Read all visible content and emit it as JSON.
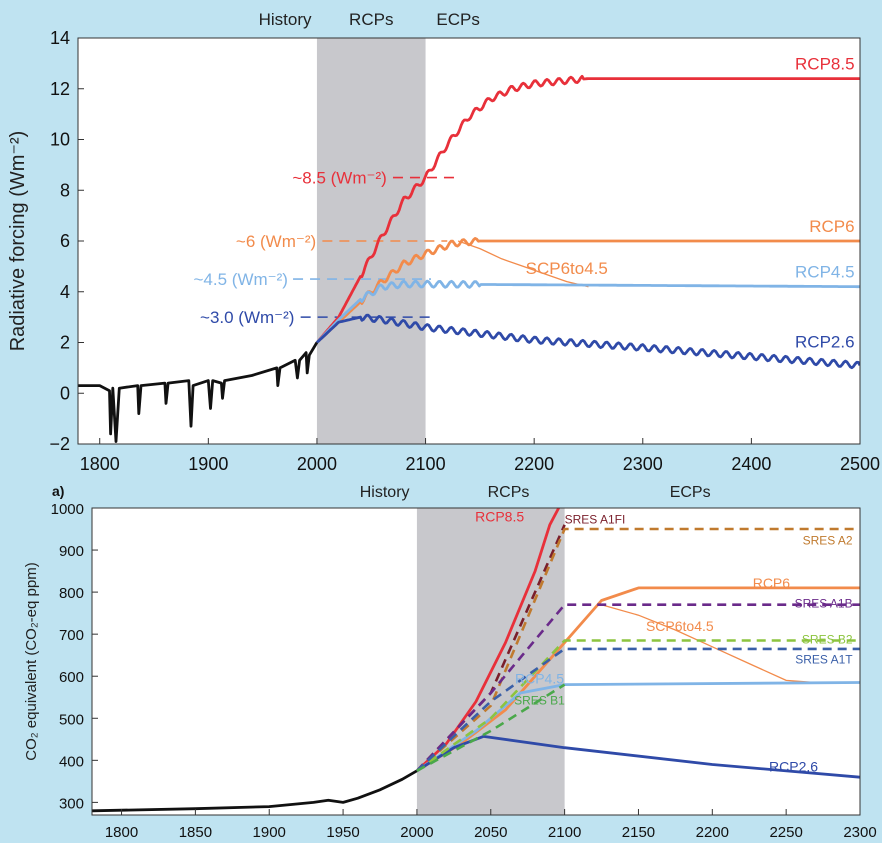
{
  "colors": {
    "rcp85": "#e8303a",
    "rcp6": "#f28b4b",
    "rcp45": "#80b4e6",
    "rcp26": "#2f4aa8",
    "history": "#111111",
    "shade": "#c8c8cc",
    "sres_a1fi": "#7a1f2b",
    "sres_a2": "#c07a2e",
    "sres_a1b": "#6a2a8a",
    "sres_b2": "#8cc43f",
    "sres_a1t": "#3a5fa8",
    "sres_b1": "#4aa84a"
  },
  "chart_data": [
    {
      "type": "line",
      "ylabel": "Radiative forcing (Wm⁻²)",
      "xlim": [
        1780,
        2500
      ],
      "ylim": [
        -2,
        14
      ],
      "x_ticks": [
        1800,
        1900,
        2000,
        2100,
        2200,
        2300,
        2400,
        2500
      ],
      "y_ticks": [
        -2,
        0,
        2,
        4,
        6,
        8,
        10,
        12,
        14
      ],
      "grid": false,
      "shaded_range": [
        2000,
        2100
      ],
      "period_labels": [
        "History",
        "RCPs",
        "ECPs"
      ],
      "level_labels": [
        {
          "text": "~8.5 (Wm⁻²)",
          "y": 8.5,
          "color": "rcp85"
        },
        {
          "text": "~6 (Wm⁻²)",
          "y": 6,
          "color": "rcp6"
        },
        {
          "text": "~4.5 (Wm⁻²)",
          "y": 4.5,
          "color": "rcp45"
        },
        {
          "text": "~3.0 (Wm⁻²)",
          "y": 3.0,
          "color": "rcp26"
        }
      ],
      "series": [
        {
          "name": "RCP8.5",
          "color": "rcp85",
          "points": [
            [
              2000,
              2.0
            ],
            [
              2020,
              3.0
            ],
            [
              2040,
              4.6
            ],
            [
              2060,
              6.2
            ],
            [
              2080,
              7.6
            ],
            [
              2100,
              8.5
            ],
            [
              2120,
              9.8
            ],
            [
              2140,
              10.9
            ],
            [
              2160,
              11.6
            ],
            [
              2180,
              12.0
            ],
            [
              2200,
              12.2
            ],
            [
              2250,
              12.4
            ],
            [
              2500,
              12.4
            ]
          ]
        },
        {
          "name": "RCP6",
          "color": "rcp6",
          "points": [
            [
              2000,
              2.0
            ],
            [
              2020,
              2.8
            ],
            [
              2040,
              3.6
            ],
            [
              2060,
              4.4
            ],
            [
              2080,
              5.1
            ],
            [
              2100,
              5.5
            ],
            [
              2125,
              5.9
            ],
            [
              2150,
              6.0
            ],
            [
              2500,
              6.0
            ]
          ]
        },
        {
          "name": "SCP6to4.5",
          "color": "rcp6",
          "points": [
            [
              2130,
              6.0
            ],
            [
              2150,
              5.7
            ],
            [
              2170,
              5.3
            ],
            [
              2190,
              5.0
            ],
            [
              2210,
              4.7
            ],
            [
              2230,
              4.4
            ],
            [
              2250,
              4.2
            ]
          ]
        },
        {
          "name": "RCP4.5",
          "color": "rcp45",
          "points": [
            [
              2000,
              2.0
            ],
            [
              2020,
              2.9
            ],
            [
              2040,
              3.7
            ],
            [
              2060,
              4.2
            ],
            [
              2080,
              4.3
            ],
            [
              2100,
              4.3
            ],
            [
              2500,
              4.2
            ]
          ]
        },
        {
          "name": "RCP2.6",
          "color": "rcp26",
          "points": [
            [
              2000,
              2.0
            ],
            [
              2020,
              2.8
            ],
            [
              2040,
              3.0
            ],
            [
              2060,
              2.9
            ],
            [
              2100,
              2.6
            ],
            [
              2200,
              2.1
            ],
            [
              2300,
              1.8
            ],
            [
              2400,
              1.45
            ],
            [
              2500,
              1.1
            ]
          ]
        },
        {
          "name": "",
          "color": "history",
          "points": [
            [
              1780,
              0.3
            ],
            [
              1800,
              0.3
            ],
            [
              1809,
              0.1
            ],
            [
              1810,
              -1.6
            ],
            [
              1812,
              0.2
            ],
            [
              1815,
              -1.9
            ],
            [
              1818,
              0.2
            ],
            [
              1835,
              0.3
            ],
            [
              1836,
              -0.8
            ],
            [
              1838,
              0.3
            ],
            [
              1860,
              0.4
            ],
            [
              1861,
              -0.4
            ],
            [
              1863,
              0.4
            ],
            [
              1882,
              0.5
            ],
            [
              1884,
              -1.3
            ],
            [
              1886,
              0.3
            ],
            [
              1900,
              0.5
            ],
            [
              1902,
              -0.6
            ],
            [
              1904,
              0.5
            ],
            [
              1912,
              0.4
            ],
            [
              1913,
              -0.2
            ],
            [
              1915,
              0.5
            ],
            [
              1940,
              0.7
            ],
            [
              1963,
              1.0
            ],
            [
              1964,
              0.3
            ],
            [
              1966,
              1.0
            ],
            [
              1980,
              1.3
            ],
            [
              1982,
              0.6
            ],
            [
              1984,
              1.3
            ],
            [
              1990,
              1.6
            ],
            [
              1991,
              0.8
            ],
            [
              1993,
              1.5
            ],
            [
              2000,
              2.0
            ]
          ]
        }
      ]
    },
    {
      "type": "line",
      "panel_label": "a)",
      "ylabel": "CO₂ equivalent (CO₂-eq ppm)",
      "xlim": [
        1780,
        2300
      ],
      "ylim": [
        270,
        1000
      ],
      "x_ticks": [
        1800,
        1850,
        1900,
        1950,
        2000,
        2050,
        2100,
        2150,
        2200,
        2250,
        2300
      ],
      "y_ticks": [
        300,
        400,
        500,
        600,
        700,
        800,
        900,
        1000
      ],
      "grid": false,
      "shaded_range": [
        2000,
        2100
      ],
      "period_labels": [
        "History",
        "RCPs",
        "ECPs"
      ],
      "series": [
        {
          "name": "RCP8.5",
          "color": "rcp85",
          "points": [
            [
              2000,
              375
            ],
            [
              2020,
              440
            ],
            [
              2040,
              540
            ],
            [
              2060,
              680
            ],
            [
              2080,
              850
            ],
            [
              2090,
              960
            ],
            [
              2096,
              1000
            ]
          ]
        },
        {
          "name": "RCP6",
          "color": "rcp6",
          "points": [
            [
              2000,
              375
            ],
            [
              2030,
              440
            ],
            [
              2060,
              520
            ],
            [
              2080,
              600
            ],
            [
              2100,
              680
            ],
            [
              2125,
              780
            ],
            [
              2150,
              810
            ],
            [
              2300,
              810
            ]
          ]
        },
        {
          "name": "SCP6to4.5",
          "color": "rcp6",
          "points": [
            [
              2125,
              770
            ],
            [
              2150,
              745
            ],
            [
              2175,
              710
            ],
            [
              2200,
              670
            ],
            [
              2225,
              630
            ],
            [
              2250,
              590
            ],
            [
              2270,
              585
            ]
          ]
        },
        {
          "name": "RCP4.5",
          "color": "rcp45",
          "points": [
            [
              2000,
              375
            ],
            [
              2040,
              470
            ],
            [
              2070,
              560
            ],
            [
              2100,
              580
            ],
            [
              2300,
              585
            ]
          ]
        },
        {
          "name": "RCP2.6",
          "color": "rcp26",
          "points": [
            [
              2000,
              375
            ],
            [
              2025,
              430
            ],
            [
              2045,
              457
            ],
            [
              2100,
              430
            ],
            [
              2200,
              390
            ],
            [
              2300,
              360
            ]
          ]
        },
        {
          "name": "",
          "color": "history",
          "points": [
            [
              1780,
              280
            ],
            [
              1850,
              285
            ],
            [
              1900,
              290
            ],
            [
              1930,
              300
            ],
            [
              1940,
              305
            ],
            [
              1950,
              300
            ],
            [
              1960,
              310
            ],
            [
              1975,
              330
            ],
            [
              1990,
              355
            ],
            [
              2000,
              375
            ]
          ]
        },
        {
          "name": "SRES A1FI",
          "color": "sres_a1fi",
          "dashed": true,
          "points": [
            [
              2000,
              375
            ],
            [
              2050,
              560
            ],
            [
              2100,
              960
            ]
          ]
        },
        {
          "name": "SRES A2",
          "color": "sres_a2",
          "dashed": true,
          "points": [
            [
              2000,
              375
            ],
            [
              2050,
              530
            ],
            [
              2100,
              950
            ],
            [
              2300,
              950
            ]
          ]
        },
        {
          "name": "SRES A1B",
          "color": "sres_a1b",
          "dashed": true,
          "points": [
            [
              2000,
              375
            ],
            [
              2050,
              560
            ],
            [
              2100,
              770
            ],
            [
              2300,
              770
            ]
          ]
        },
        {
          "name": "SRES B2",
          "color": "sres_b2",
          "dashed": true,
          "points": [
            [
              2000,
              375
            ],
            [
              2050,
              500
            ],
            [
              2100,
              685
            ],
            [
              2300,
              685
            ]
          ]
        },
        {
          "name": "SRES A1T",
          "color": "sres_a1t",
          "dashed": true,
          "points": [
            [
              2000,
              375
            ],
            [
              2050,
              540
            ],
            [
              2100,
              665
            ],
            [
              2300,
              665
            ]
          ]
        },
        {
          "name": "SRES B1",
          "color": "sres_b1",
          "dashed": true,
          "points": [
            [
              2000,
              375
            ],
            [
              2050,
              470
            ],
            [
              2100,
              580
            ]
          ]
        }
      ]
    }
  ]
}
